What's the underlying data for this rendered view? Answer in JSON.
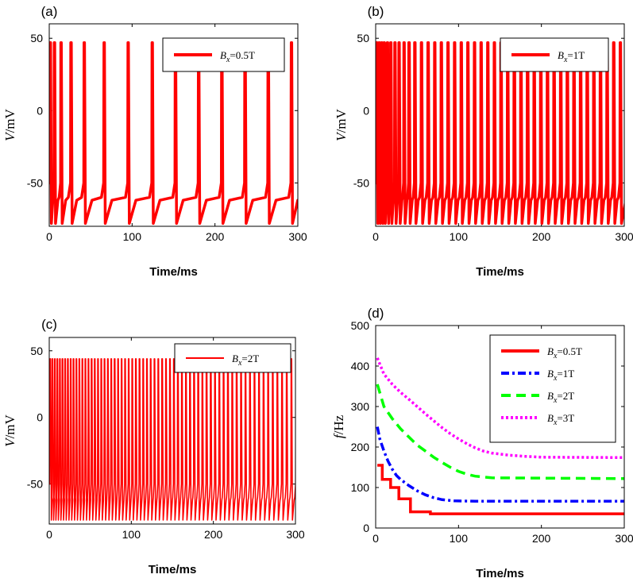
{
  "chart_data": [
    {
      "panel_label": "(a)",
      "type": "line",
      "xlabel": "Time/ms",
      "ylabel_italic": "V",
      "ylabel_rest": "/mV",
      "xlim": [
        0,
        300
      ],
      "ylim": [
        -80,
        60
      ],
      "xticks": [
        0,
        100,
        200,
        300
      ],
      "yticks": [
        -50,
        0,
        50
      ],
      "legend_position": "top-right",
      "color": "#ff0000",
      "line_style": "thick",
      "series": [
        {
          "legend_B": "B",
          "legend_sub": "x",
          "legend_value": "=0.5T",
          "spike_times": [
            1,
            6,
            14,
            26,
            42,
            66,
            95,
            124,
            152,
            180,
            208,
            236,
            264,
            292
          ],
          "v_peak": 47,
          "v_min": -78,
          "v_plateau": -60
        }
      ]
    },
    {
      "panel_label": "(b)",
      "type": "line",
      "xlabel": "Time/ms",
      "ylabel_italic": "V",
      "ylabel_rest": "/mV",
      "xlim": [
        0,
        300
      ],
      "ylim": [
        -80,
        60
      ],
      "xticks": [
        0,
        100,
        200,
        300
      ],
      "yticks": [
        -50,
        0,
        50
      ],
      "legend_position": "top-right",
      "color": "#ff0000",
      "line_style": "thick",
      "series": [
        {
          "legend_B": "B",
          "legend_sub": "x",
          "legend_value": "=1T",
          "spike_times": [
            1,
            4,
            7,
            10,
            14,
            18,
            23,
            28,
            34,
            40,
            47,
            55,
            63,
            71,
            79,
            87,
            95,
            103,
            111,
            119,
            127,
            135,
            143,
            151,
            159,
            167,
            175,
            183,
            191,
            199,
            207,
            215,
            223,
            231,
            239,
            247,
            255,
            263,
            271,
            279,
            287,
            295
          ],
          "v_peak": 47,
          "v_min": -78,
          "v_plateau": -60
        }
      ]
    },
    {
      "panel_label": "(c)",
      "type": "line",
      "xlabel": "Time/ms",
      "ylabel_italic": "V",
      "ylabel_rest": "/mV",
      "xlim": [
        0,
        300
      ],
      "ylim": [
        -80,
        60
      ],
      "xticks": [
        0,
        100,
        200,
        300
      ],
      "yticks": [
        -50,
        0,
        50
      ],
      "legend_position": "top-right",
      "color": "#ff0000",
      "line_style": "thin",
      "series": [
        {
          "legend_B": "B",
          "legend_sub": "x",
          "legend_value": "=2T",
          "spike_period_start": 2.5,
          "spike_period_end": 5.8,
          "t_first": 1,
          "v_peak": 44,
          "v_min": -77,
          "v_plateau": -60
        }
      ]
    },
    {
      "panel_label": "(d)",
      "type": "line",
      "xlabel": "Time/ms",
      "ylabel_italic": "f",
      "ylabel_rest": "/Hz",
      "xlim": [
        0,
        300
      ],
      "ylim": [
        0,
        500
      ],
      "xticks": [
        0,
        100,
        200,
        300
      ],
      "yticks": [
        0,
        100,
        200,
        300,
        400,
        500
      ],
      "legend_position": "top-right",
      "series": [
        {
          "legend_B": "B",
          "legend_sub": "x",
          "legend_value": "=0.5T",
          "color": "#ff0000",
          "dash": "solid",
          "x": [
            2,
            8,
            8,
            18,
            18,
            28,
            28,
            42,
            42,
            66,
            66,
            300
          ],
          "y": [
            155,
            155,
            120,
            120,
            100,
            100,
            72,
            72,
            40,
            40,
            35,
            35
          ]
        },
        {
          "legend_B": "B",
          "legend_sub": "x",
          "legend_value": "=1T",
          "color": "#0000ff",
          "dash": "dashdot",
          "x": [
            2,
            5,
            10,
            15,
            20,
            25,
            30,
            40,
            50,
            60,
            70,
            80,
            95,
            120,
            300
          ],
          "y": [
            250,
            220,
            190,
            165,
            145,
            130,
            120,
            105,
            92,
            82,
            75,
            70,
            67,
            66,
            66
          ]
        },
        {
          "legend_B": "B",
          "legend_sub": "x",
          "legend_value": "=2T",
          "color": "#00ff00",
          "dash": "dashed",
          "x": [
            2,
            10,
            20,
            30,
            40,
            50,
            60,
            70,
            80,
            90,
            100,
            110,
            120,
            140,
            300
          ],
          "y": [
            355,
            300,
            270,
            245,
            225,
            205,
            190,
            175,
            162,
            150,
            140,
            133,
            128,
            124,
            122
          ]
        },
        {
          "legend_B": "B",
          "legend_sub": "x",
          "legend_value": "=3T",
          "color": "#ff00ff",
          "dash": "dotted",
          "x": [
            2,
            10,
            20,
            30,
            40,
            50,
            60,
            70,
            80,
            90,
            100,
            110,
            120,
            130,
            140,
            160,
            180,
            200,
            300
          ],
          "y": [
            420,
            380,
            355,
            335,
            318,
            300,
            282,
            265,
            248,
            233,
            220,
            208,
            198,
            190,
            185,
            180,
            177,
            175,
            174
          ]
        }
      ]
    }
  ]
}
